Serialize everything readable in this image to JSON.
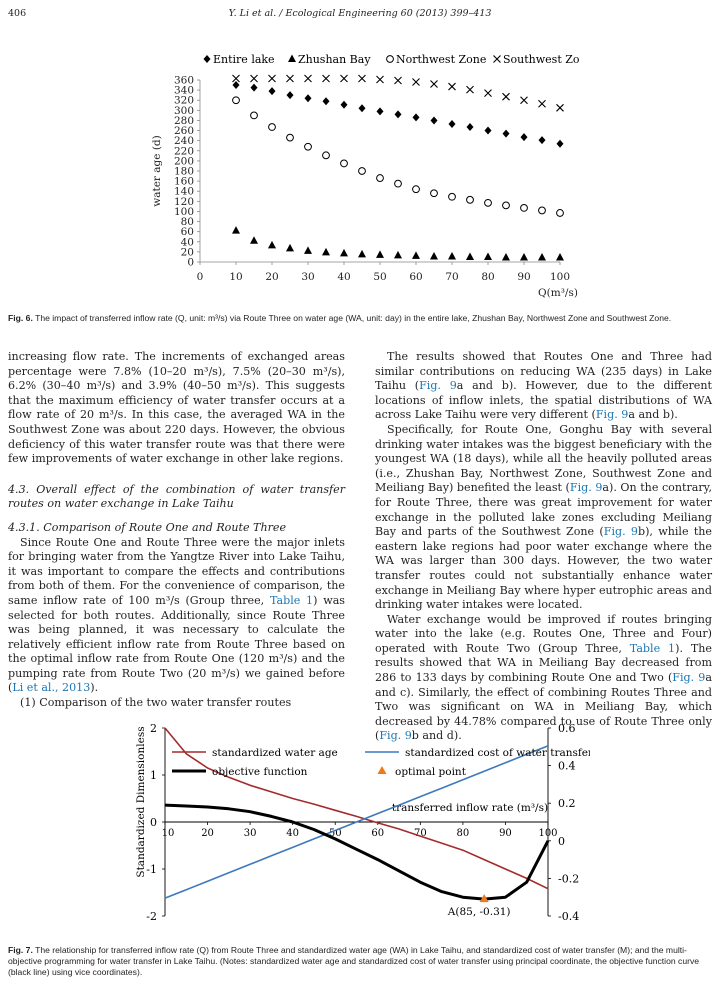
{
  "header": {
    "page_number": "406",
    "journal": "Y. Li et al. / Ecological Engineering 60 (2013) 399–413"
  },
  "fig6": {
    "caption_label": "Fig. 6.",
    "caption_text": "The impact of transferred inflow rate (Q, unit: m³/s) via Route Three on water age (WA, unit: day) in the entire lake, Zhushan Bay, Northwest Zone and Southwest Zone."
  },
  "fig7": {
    "caption_label": "Fig. 7.",
    "caption_text": "The relationship for transferred inflow rate (Q) from Route Three and standardized water age (WA) in Lake Taihu, and standardized cost of water transfer (M); and the multi-objective programming for water transfer in Lake Taihu. (Notes: standardized water age and standardized cost of water transfer using principal coordinate, the objective function curve (black line) using vice coordinates)."
  },
  "chart_data": [
    {
      "type": "scatter",
      "title": "",
      "xlabel": "Q(m³/s)",
      "ylabel": "water age (d)",
      "xlim": [
        0,
        100
      ],
      "ylim": [
        0,
        360
      ],
      "xticks": [
        0,
        10,
        20,
        30,
        40,
        50,
        60,
        70,
        80,
        90,
        100
      ],
      "yticks": [
        0,
        20,
        40,
        60,
        80,
        100,
        120,
        140,
        160,
        180,
        200,
        220,
        240,
        260,
        280,
        300,
        320,
        340,
        360
      ],
      "grid": false,
      "legend_position": "top",
      "x": [
        10,
        15,
        20,
        25,
        30,
        35,
        40,
        45,
        50,
        55,
        60,
        65,
        70,
        75,
        80,
        85,
        90,
        95,
        100
      ],
      "series": [
        {
          "name": "Entire lake",
          "marker": "diamond",
          "values": [
            350,
            345,
            338,
            330,
            324,
            318,
            311,
            304,
            298,
            292,
            286,
            280,
            273,
            267,
            260,
            254,
            247,
            241,
            234
          ]
        },
        {
          "name": "Zhushan Bay",
          "marker": "triangle",
          "values": [
            62,
            42,
            33,
            27,
            22,
            19,
            17,
            15,
            14,
            13,
            12,
            11,
            11,
            10,
            10,
            9,
            9,
            9,
            9
          ]
        },
        {
          "name": "Northwest Zone",
          "marker": "circle",
          "values": [
            320,
            290,
            267,
            246,
            228,
            211,
            195,
            180,
            166,
            155,
            144,
            136,
            129,
            123,
            117,
            112,
            107,
            102,
            97
          ]
        },
        {
          "name": "Southwest Zone",
          "marker": "cross",
          "values": [
            363,
            363,
            363,
            363,
            363,
            363,
            363,
            363,
            361,
            359,
            356,
            352,
            347,
            341,
            334,
            327,
            320,
            313,
            305
          ]
        }
      ]
    },
    {
      "type": "line",
      "title": "",
      "xlabel": "transferred inflow rate (m³/s)",
      "ylabel": "Standardized Dimensionless",
      "xlim": [
        10,
        100
      ],
      "ylim": [
        -2,
        2
      ],
      "y2lim": [
        -0.4,
        0.6
      ],
      "xticks": [
        10,
        20,
        30,
        40,
        50,
        60,
        70,
        80,
        90,
        100
      ],
      "yticks": [
        -2,
        -1,
        0,
        1,
        2
      ],
      "y2ticks": [
        -0.4,
        -0.2,
        0,
        0.2,
        0.4,
        0.6
      ],
      "grid": false,
      "legend_position": "top",
      "x": [
        10,
        15,
        20,
        25,
        30,
        35,
        40,
        45,
        50,
        55,
        60,
        65,
        70,
        75,
        80,
        85,
        90,
        95,
        100
      ],
      "series": [
        {
          "name": "standardized water age",
          "axis": "left",
          "color": "#a42b2b",
          "values": [
            2.0,
            1.45,
            1.15,
            0.95,
            0.78,
            0.64,
            0.5,
            0.38,
            0.25,
            0.12,
            -0.02,
            -0.15,
            -0.3,
            -0.45,
            -0.6,
            -0.8,
            -1.0,
            -1.2,
            -1.42
          ]
        },
        {
          "name": "standardized cost of water transfer",
          "axis": "left",
          "color": "#3d79bd",
          "values": [
            -1.62,
            -1.44,
            -1.26,
            -1.08,
            -0.9,
            -0.72,
            -0.54,
            -0.36,
            -0.18,
            0.0,
            0.18,
            0.36,
            0.54,
            0.72,
            0.9,
            1.08,
            1.26,
            1.44,
            1.62
          ]
        },
        {
          "name": "objective function",
          "axis": "right",
          "color": "#000000",
          "values": [
            0.19,
            0.185,
            0.18,
            0.17,
            0.155,
            0.13,
            0.1,
            0.06,
            0.01,
            -0.045,
            -0.1,
            -0.16,
            -0.22,
            -0.27,
            -0.3,
            -0.31,
            -0.3,
            -0.22,
            0.0
          ]
        }
      ],
      "optimal_point": {
        "name": "optimal point",
        "x": 85,
        "y": -0.31,
        "label": "A(85, -0.31)",
        "color": "#f07a1a"
      }
    }
  ],
  "body": {
    "left": {
      "p1": "increasing flow rate. The increments of exchanged areas percentage were 7.8% (10–20 m³/s), 7.5% (20–30 m³/s), 6.2% (30–40 m³/s) and 3.9% (40–50 m³/s). This suggests that the maximum efficiency of water transfer occurs at a flow rate of 20 m³/s. In this case, the averaged WA in the Southwest Zone was about 220 days. However, the obvious deficiency of this water transfer route was that there were few improvements of water exchange in other lake regions.",
      "sec_43": "4.3.   Overall effect of the combination of water transfer routes on water exchange in Lake Taihu",
      "sec_431": "4.3.1.   Comparison of Route One and Route Three",
      "p2_a": "Since Route One and Route Three were the major inlets for bringing water from the Yangtze River into Lake Taihu, it was important to compare the effects and contributions from both of them. For the convenience of comparison, the same inflow rate of 100 m³/s (Group three, ",
      "p2_link1": "Table 1",
      "p2_b": ") was selected for both routes. Additionally, since Route Three was being planned, it was necessary to calculate the relatively efficient inflow rate from Route Three based on the optimal inflow rate from Route One (120 m³/s) and the pumping rate from Route Two (20 m³/s) we gained before (",
      "p2_link2": "Li et al., 2013",
      "p2_c": ").",
      "p3": "(1) Comparison of the two water transfer routes"
    },
    "right": {
      "p1_a": "The results showed that Routes One and Three had similar contributions on reducing WA (235 days) in Lake Taihu (",
      "p1_l1": "Fig. 9",
      "p1_b": "a and b). However, due to the different locations of inflow inlets, the spatial distributions of WA across Lake Taihu were very different (",
      "p1_l2": "Fig. 9",
      "p1_c": "a and b).",
      "p2_a": "Specifically, for Route One, Gonghu Bay with several drinking water intakes was the biggest beneficiary with the youngest WA (18 days), while all the heavily polluted areas (i.e., Zhushan Bay, Northwest Zone, Southwest Zone and Meiliang Bay) benefited the least (",
      "p2_l1": "Fig. 9",
      "p2_b": "a). On the contrary, for Route Three, there was great improvement for water exchange in the polluted lake zones excluding Meiliang Bay and parts of the Southwest Zone (",
      "p2_l2": "Fig. 9",
      "p2_c": "b), while the eastern lake regions had poor water exchange where the WA was larger than 300 days. However, the two water transfer routes could not substantially enhance water exchange in Meiliang Bay where hyper eutrophic areas and drinking water intakes were located.",
      "p3_a": "Water exchange would be improved if routes bringing water into the lake (e.g. Routes One, Three and Four) operated with Route Two (Group Three, ",
      "p3_l1": "Table 1",
      "p3_b": "). The results showed that WA in Meiliang Bay decreased from 286 to 133 days by combining Route One and Two (",
      "p3_l2": "Fig. 9",
      "p3_c": "a and c). Similarly, the effect of combining Routes Three and Two was significant on WA in Meiliang Bay, which decreased by 44.78% compared to use of Route Three only (",
      "p3_l3": "Fig. 9",
      "p3_d": "b and d)."
    }
  }
}
